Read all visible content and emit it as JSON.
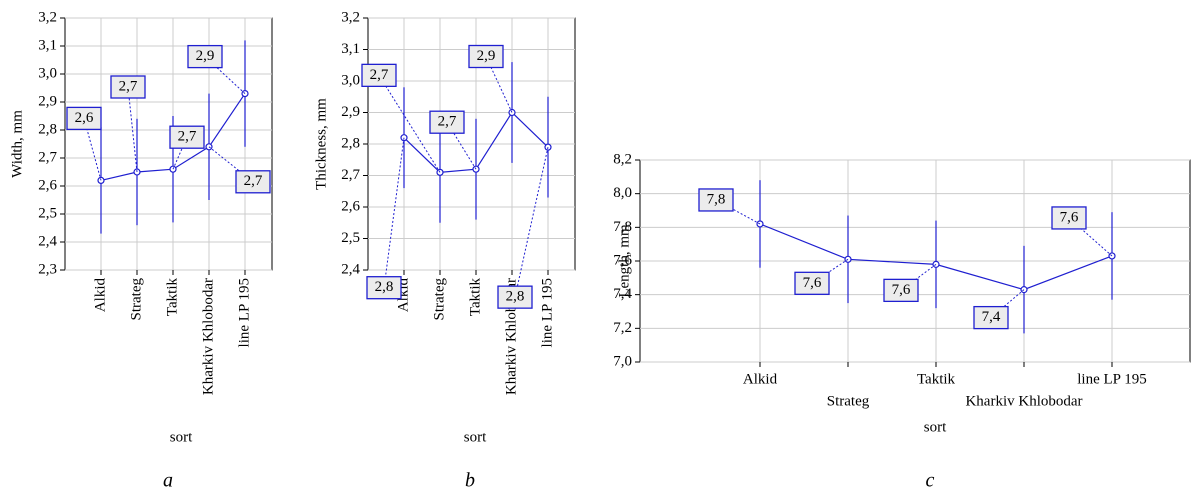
{
  "chart_data": [
    {
      "type": "line",
      "y_label": "Width, mm",
      "x_label": "sort",
      "caption": "a",
      "categories": [
        "Alkid",
        "Strateg",
        "Taktik",
        "Kharkiv Khlobodar",
        "line LP 195"
      ],
      "values": [
        2.62,
        2.65,
        2.66,
        2.74,
        2.93
      ],
      "errors": [
        0.19,
        0.19,
        0.19,
        0.19,
        0.19
      ],
      "value_labels": [
        "2,6",
        "2,7",
        "2,7",
        "2,7",
        "2,9"
      ],
      "color": "#1f1fd0",
      "grid": true,
      "ylim": [
        2.3,
        3.2
      ],
      "yticks": [
        {
          "value": 2.3,
          "label": "2,3"
        },
        {
          "value": 2.4,
          "label": "2,4"
        },
        {
          "value": 2.5,
          "label": "2,5"
        },
        {
          "value": 2.6,
          "label": "2,6"
        },
        {
          "value": 2.7,
          "label": "2,7"
        },
        {
          "value": 2.8,
          "label": "2,8"
        },
        {
          "value": 2.9,
          "label": "2,9"
        },
        {
          "value": 3.0,
          "label": "3,0"
        },
        {
          "value": 3.1,
          "label": "3,1"
        },
        {
          "value": 3.2,
          "label": "3,2"
        }
      ]
    },
    {
      "type": "line",
      "y_label": "Thickness, mm",
      "x_label": "sort",
      "caption": "b",
      "categories": [
        "Alkid",
        "Strateg",
        "Taktik",
        "Kharkiv Khlobodar",
        "line LP 195"
      ],
      "values": [
        2.82,
        2.71,
        2.72,
        2.9,
        2.79
      ],
      "errors": [
        0.16,
        0.16,
        0.16,
        0.16,
        0.16
      ],
      "value_labels": [
        "2,8",
        "2,7",
        "2,7",
        "2,9",
        "2,8"
      ],
      "color": "#1f1fd0",
      "grid": true,
      "ylim": [
        2.4,
        3.2
      ],
      "yticks": [
        {
          "value": 2.4,
          "label": "2,4"
        },
        {
          "value": 2.5,
          "label": "2,5"
        },
        {
          "value": 2.6,
          "label": "2,6"
        },
        {
          "value": 2.7,
          "label": "2,7"
        },
        {
          "value": 2.8,
          "label": "2,8"
        },
        {
          "value": 2.9,
          "label": "2,9"
        },
        {
          "value": 3.0,
          "label": "3,0"
        },
        {
          "value": 3.1,
          "label": "3,1"
        },
        {
          "value": 3.2,
          "label": "3,2"
        }
      ]
    },
    {
      "type": "line",
      "y_label": "Length, mm",
      "x_label": "sort",
      "caption": "c",
      "categories": [
        "Alkid",
        "Strateg",
        "Taktik",
        "Kharkiv Khlobodar",
        "line LP 195"
      ],
      "values": [
        7.82,
        7.61,
        7.58,
        7.43,
        7.63
      ],
      "errors": [
        0.26,
        0.26,
        0.26,
        0.26,
        0.26
      ],
      "value_labels": [
        "7,8",
        "7,6",
        "7,6",
        "7,4",
        "7,6"
      ],
      "color": "#1f1fd0",
      "grid": true,
      "ylim": [
        7.0,
        8.2
      ],
      "yticks": [
        {
          "value": 7.0,
          "label": "7,0"
        },
        {
          "value": 7.2,
          "label": "7,2"
        },
        {
          "value": 7.4,
          "label": "7,4"
        },
        {
          "value": 7.6,
          "label": "7,6"
        },
        {
          "value": 7.8,
          "label": "7,8"
        },
        {
          "value": 8.0,
          "label": "8,0"
        },
        {
          "value": 8.2,
          "label": "8,2"
        }
      ]
    }
  ]
}
